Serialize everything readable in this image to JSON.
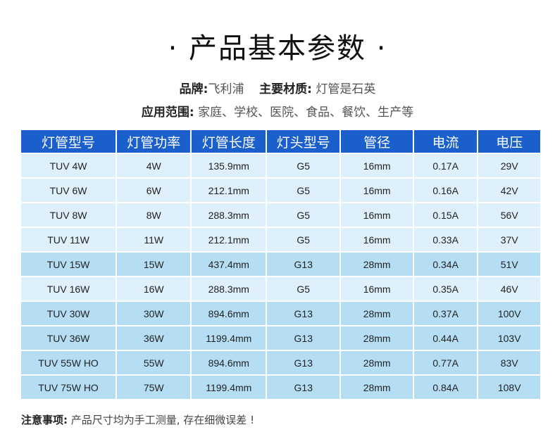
{
  "title": "· 产品基本参数 ·",
  "brand": {
    "label": "品牌:",
    "value": "飞利浦"
  },
  "material": {
    "label": "主要材质:",
    "value": "灯管是石英"
  },
  "scope": {
    "label": "应用范围:",
    "value": "家庭、学校、医院、食品、餐饮、生产等"
  },
  "table": {
    "headers": [
      "灯管型号",
      "灯管功率",
      "灯管长度",
      "灯头型号",
      "管径",
      "电流",
      "电压"
    ],
    "rows": [
      {
        "shade": "light",
        "cells": [
          "TUV 4W",
          "4W",
          "135.9mm",
          "G5",
          "16mm",
          "0.17A",
          "29V"
        ]
      },
      {
        "shade": "light",
        "cells": [
          "TUV 6W",
          "6W",
          "212.1mm",
          "G5",
          "16mm",
          "0.16A",
          "42V"
        ]
      },
      {
        "shade": "light",
        "cells": [
          "TUV 8W",
          "8W",
          "288.3mm",
          "G5",
          "16mm",
          "0.15A",
          "56V"
        ]
      },
      {
        "shade": "light",
        "cells": [
          "TUV 11W",
          "11W",
          "212.1mm",
          "G5",
          "16mm",
          "0.33A",
          "37V"
        ]
      },
      {
        "shade": "dark",
        "cells": [
          "TUV 15W",
          "15W",
          "437.4mm",
          "G13",
          "28mm",
          "0.34A",
          "51V"
        ]
      },
      {
        "shade": "light",
        "cells": [
          "TUV 16W",
          "16W",
          "288.3mm",
          "G5",
          "16mm",
          "0.35A",
          "46V"
        ]
      },
      {
        "shade": "dark",
        "cells": [
          "TUV 30W",
          "30W",
          "894.6mm",
          "G13",
          "28mm",
          "0.37A",
          "100V"
        ]
      },
      {
        "shade": "dark",
        "cells": [
          "TUV 36W",
          "36W",
          "1199.4mm",
          "G13",
          "28mm",
          "0.44A",
          "103V"
        ]
      },
      {
        "shade": "dark",
        "cells": [
          "TUV 55W HO",
          "55W",
          "894.6mm",
          "G13",
          "28mm",
          "0.77A",
          "83V"
        ]
      },
      {
        "shade": "dark",
        "cells": [
          "TUV 75W HO",
          "75W",
          "1199.4mm",
          "G13",
          "28mm",
          "0.84A",
          "108V"
        ]
      }
    ]
  },
  "note": {
    "label": "注意事项:",
    "value": " 产品尺寸均为手工测量, 存在细微误差 !"
  },
  "colors": {
    "header": "#1a5fcc",
    "row_light": "#def0fb",
    "row_dark": "#b5def5"
  }
}
